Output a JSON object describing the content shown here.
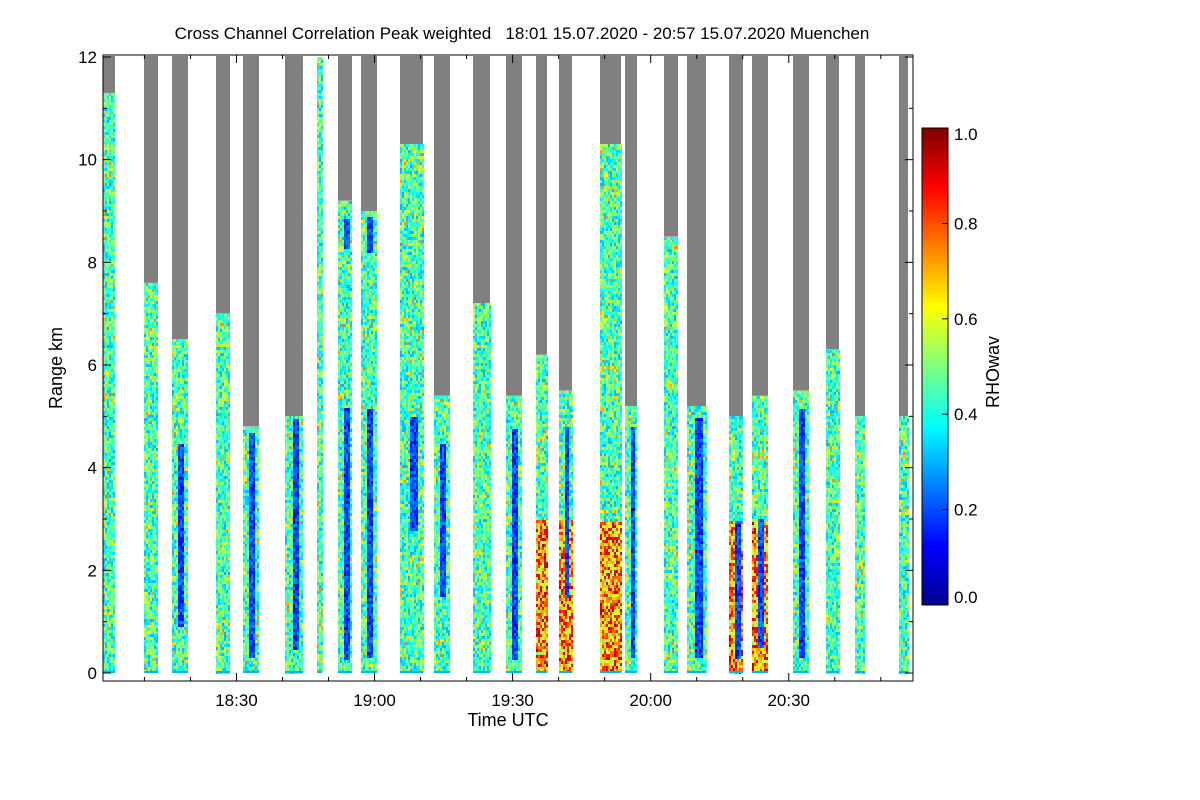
{
  "chart_data": {
    "type": "heatmap",
    "title": "Cross Channel Correlation Peak weighted   18:01 15.07.2020 - 20:57 15.07.2020 Muenchen",
    "xlabel": "Time UTC",
    "ylabel": "Range km",
    "x_ticks": [
      "18:30",
      "19:00",
      "19:30",
      "20:00",
      "20:30"
    ],
    "x_tick_minutes": [
      1110,
      1140,
      1170,
      1200,
      1230
    ],
    "xlim_minutes": [
      1081,
      1257
    ],
    "y_ticks": [
      "0",
      "2",
      "4",
      "6",
      "8",
      "10",
      "12"
    ],
    "y_tick_values": [
      0,
      2,
      4,
      6,
      8,
      10,
      12
    ],
    "ylim": [
      0,
      12
    ],
    "colorbar": {
      "label": "RHOwav",
      "range": [
        0.0,
        1.0
      ],
      "ticks": [
        "0.0",
        "0.2",
        "0.4",
        "0.6",
        "0.8",
        "1.0"
      ],
      "tick_values": [
        0.0,
        0.2,
        0.4,
        0.6,
        0.8,
        1.0
      ],
      "colormap": "jet",
      "no_data_color": "#808080"
    },
    "scans": [
      {
        "start": 1081.0,
        "end": 1083.5,
        "grey_above_km": 11.3,
        "low_km": [],
        "high": false
      },
      {
        "start": 1090.0,
        "end": 1093.0,
        "grey_above_km": 7.6,
        "low_km": [],
        "high": false
      },
      {
        "start": 1096.0,
        "end": 1099.5,
        "grey_above_km": 6.5,
        "low_km": [
          [
            0.9,
            4.5
          ]
        ],
        "high": false
      },
      {
        "start": 1105.5,
        "end": 1108.5,
        "grey_above_km": 7.0,
        "low_km": [],
        "high": false
      },
      {
        "start": 1111.5,
        "end": 1115.0,
        "grey_above_km": 4.8,
        "low_km": [
          [
            0.3,
            4.7
          ]
        ],
        "high": false
      },
      {
        "start": 1120.5,
        "end": 1124.5,
        "grey_above_km": 5.0,
        "low_km": [
          [
            0.5,
            5.0
          ]
        ],
        "high": false
      },
      {
        "start": 1127.5,
        "end": 1128.5,
        "grey_above_km": 12.0,
        "low_km": [],
        "high": false
      },
      {
        "start": 1132.0,
        "end": 1135.0,
        "grey_above_km": 9.2,
        "low_km": [
          [
            0.3,
            5.2
          ],
          [
            8.3,
            8.9
          ]
        ],
        "high": false
      },
      {
        "start": 1137.0,
        "end": 1140.5,
        "grey_above_km": 9.0,
        "low_km": [
          [
            0.3,
            5.2
          ],
          [
            8.2,
            8.9
          ]
        ],
        "high": false
      },
      {
        "start": 1145.5,
        "end": 1150.5,
        "grey_above_km": 10.3,
        "low_km": [
          [
            2.8,
            5.0
          ]
        ],
        "high": false
      },
      {
        "start": 1153.0,
        "end": 1156.5,
        "grey_above_km": 5.4,
        "low_km": [
          [
            1.5,
            4.5
          ]
        ],
        "high": false
      },
      {
        "start": 1161.5,
        "end": 1165.0,
        "grey_above_km": 7.2,
        "low_km": [],
        "high": false
      },
      {
        "start": 1168.5,
        "end": 1172.0,
        "grey_above_km": 5.4,
        "low_km": [
          [
            0.3,
            4.8
          ]
        ],
        "high": false
      },
      {
        "start": 1175.0,
        "end": 1177.5,
        "grey_above_km": 6.2,
        "low_km": [],
        "high": true
      },
      {
        "start": 1180.0,
        "end": 1183.0,
        "grey_above_km": 5.5,
        "low_km": [
          [
            1.5,
            4.8
          ]
        ],
        "high": true
      },
      {
        "start": 1189.0,
        "end": 1193.5,
        "grey_above_km": 10.3,
        "low_km": [],
        "high": true
      },
      {
        "start": 1194.5,
        "end": 1197.0,
        "grey_above_km": 5.2,
        "low_km": [
          [
            0.3,
            4.8
          ]
        ],
        "high": false
      },
      {
        "start": 1203.0,
        "end": 1206.0,
        "grey_above_km": 8.5,
        "low_km": [],
        "high": false
      },
      {
        "start": 1208.0,
        "end": 1212.0,
        "grey_above_km": 5.2,
        "low_km": [
          [
            0.3,
            5.0
          ]
        ],
        "high": false
      },
      {
        "start": 1217.0,
        "end": 1220.0,
        "grey_above_km": 5.0,
        "low_km": [
          [
            0.3,
            3.0
          ]
        ],
        "high": true
      },
      {
        "start": 1222.0,
        "end": 1225.5,
        "grey_above_km": 5.4,
        "low_km": [
          [
            0.5,
            3.0
          ]
        ],
        "high": true
      },
      {
        "start": 1231.0,
        "end": 1234.5,
        "grey_above_km": 5.5,
        "low_km": [
          [
            0.3,
            5.2
          ]
        ],
        "high": false
      },
      {
        "start": 1238.0,
        "end": 1241.0,
        "grey_above_km": 6.3,
        "low_km": [],
        "high": false
      },
      {
        "start": 1244.5,
        "end": 1246.5,
        "grey_above_km": 5.0,
        "low_km": [],
        "high": false
      },
      {
        "start": 1254.0,
        "end": 1256.0,
        "grey_above_km": 5.0,
        "low_km": [],
        "high": false
      }
    ]
  }
}
